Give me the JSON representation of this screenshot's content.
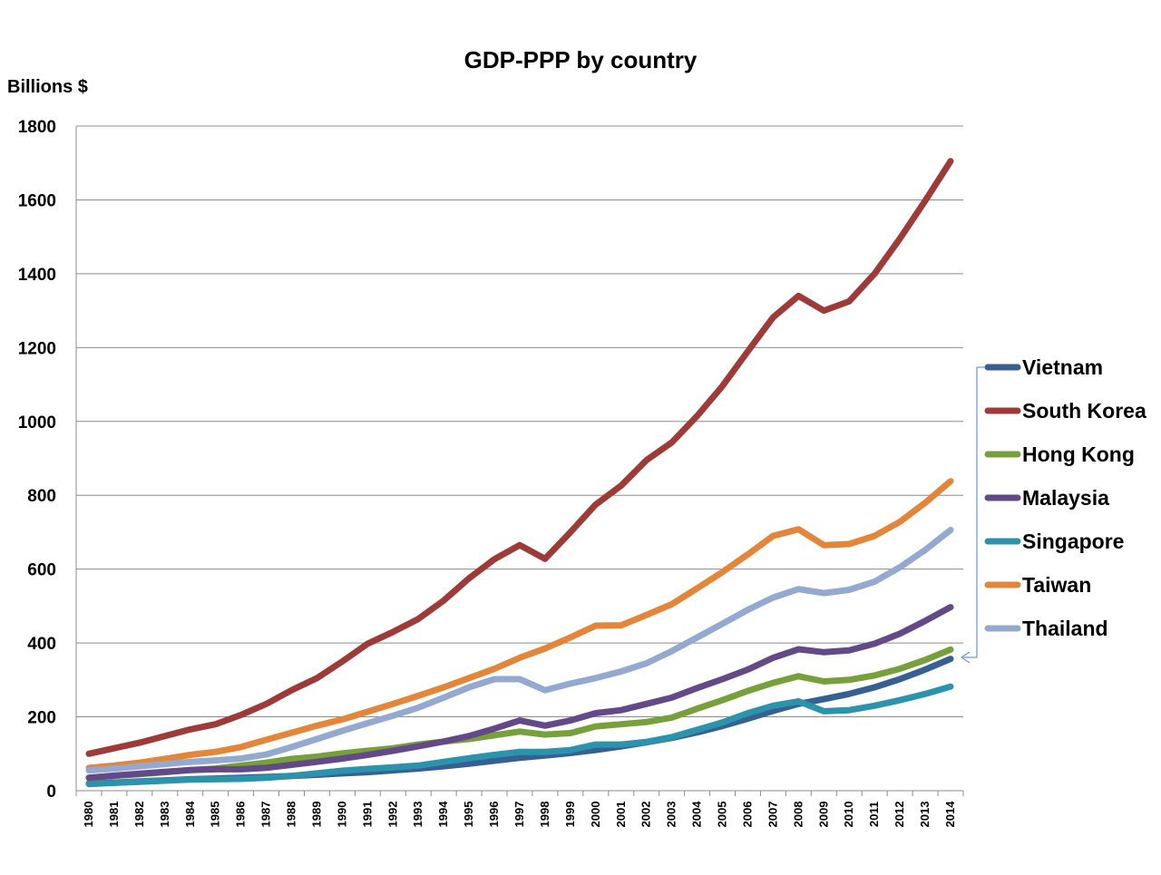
{
  "chart_data": {
    "type": "line",
    "title": "GDP-PPP by country",
    "ylabel": "Billions $",
    "xlabel": "",
    "ylim": [
      0,
      1800
    ],
    "yticks": [
      0,
      200,
      400,
      600,
      800,
      1000,
      1200,
      1400,
      1600,
      1800
    ],
    "grid": "horizontal",
    "legend_position": "right",
    "x": [
      "1980",
      "1981",
      "1982",
      "1983",
      "1984",
      "1985",
      "1986",
      "1987",
      "1988",
      "1989",
      "1990",
      "1991",
      "1992",
      "1993",
      "1994",
      "1995",
      "1996",
      "1997",
      "1998",
      "1999",
      "2000",
      "2001",
      "2002",
      "2003",
      "2004",
      "2005",
      "2006",
      "2007",
      "2008",
      "2009",
      "2010",
      "2011",
      "2012",
      "2013",
      "2014"
    ],
    "series": [
      {
        "name": "Vietnam",
        "color": "#376092",
        "values": [
          20,
          22,
          25,
          28,
          31,
          33,
          35,
          37,
          40,
          43,
          47,
          50,
          55,
          60,
          66,
          73,
          81,
          89,
          95,
          102,
          110,
          120,
          131,
          143,
          158,
          175,
          195,
          216,
          235,
          248,
          262,
          280,
          302,
          328,
          357
        ]
      },
      {
        "name": "South Korea",
        "color": "#9E3B38",
        "values": [
          100,
          115,
          130,
          148,
          166,
          180,
          205,
          235,
          272,
          305,
          350,
          398,
          430,
          465,
          515,
          575,
          627,
          665,
          628,
          700,
          775,
          826,
          895,
          943,
          1015,
          1096,
          1190,
          1282,
          1340,
          1300,
          1325,
          1400,
          1495,
          1598,
          1705
        ]
      },
      {
        "name": "Hong Kong",
        "color": "#77A03B",
        "values": [
          35,
          40,
          45,
          50,
          56,
          60,
          68,
          76,
          86,
          92,
          101,
          108,
          115,
          125,
          133,
          140,
          150,
          160,
          152,
          156,
          174,
          180,
          186,
          198,
          222,
          245,
          270,
          292,
          310,
          296,
          300,
          312,
          330,
          354,
          382
        ]
      },
      {
        "name": "Malaysia",
        "color": "#634987",
        "values": [
          35,
          41,
          46,
          51,
          56,
          58,
          58,
          62,
          70,
          78,
          87,
          97,
          108,
          120,
          133,
          148,
          168,
          190,
          176,
          190,
          210,
          218,
          235,
          252,
          278,
          302,
          328,
          360,
          383,
          375,
          380,
          398,
          425,
          460,
          497
        ]
      },
      {
        "name": "Singapore",
        "color": "#2C93AD",
        "values": [
          18,
          21,
          24,
          27,
          30,
          31,
          32,
          35,
          40,
          47,
          54,
          59,
          63,
          68,
          78,
          88,
          97,
          105,
          105,
          110,
          125,
          125,
          132,
          145,
          165,
          185,
          210,
          230,
          242,
          215,
          218,
          230,
          245,
          262,
          282
        ]
      },
      {
        "name": "Taiwan",
        "color": "#E3863A",
        "values": [
          62,
          68,
          76,
          86,
          97,
          105,
          118,
          138,
          157,
          176,
          193,
          214,
          235,
          257,
          280,
          305,
          330,
          360,
          385,
          415,
          447,
          448,
          476,
          505,
          548,
          592,
          640,
          690,
          708,
          665,
          668,
          690,
          728,
          780,
          838
        ]
      },
      {
        "name": "Thailand",
        "color": "#93A9D0",
        "values": [
          55,
          60,
          66,
          72,
          78,
          82,
          87,
          98,
          118,
          140,
          162,
          183,
          203,
          225,
          252,
          280,
          302,
          302,
          272,
          290,
          305,
          323,
          345,
          378,
          415,
          452,
          490,
          523,
          546,
          535,
          544,
          566,
          605,
          652,
          706
        ]
      }
    ]
  }
}
